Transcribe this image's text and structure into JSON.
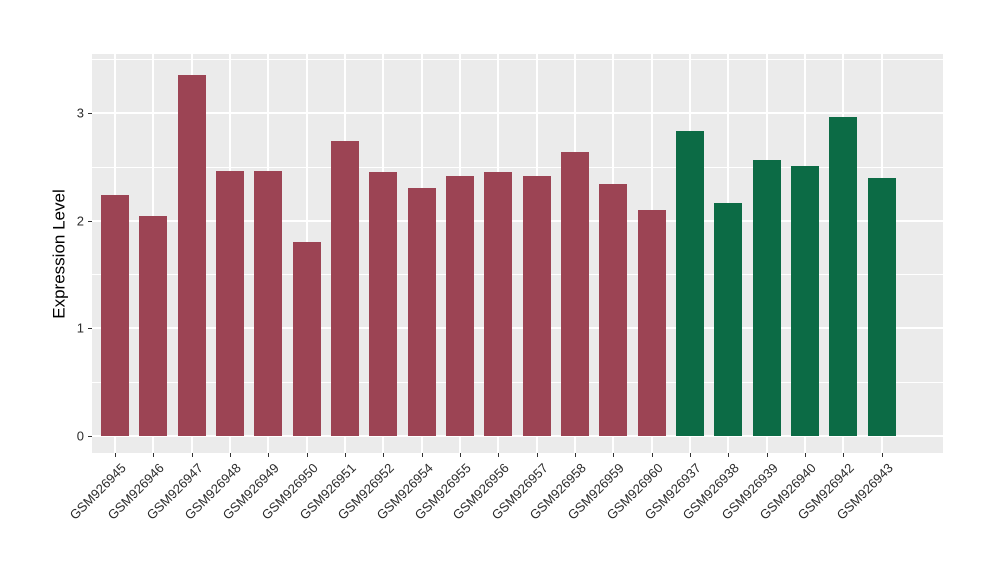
{
  "chart_data": {
    "type": "bar",
    "title": "",
    "xlabel": "",
    "ylabel": "Expression Level",
    "ylim": [
      -0.15,
      3.54
    ],
    "yticks": [
      "0",
      "1",
      "2",
      "3"
    ],
    "ytick_values": [
      0,
      1,
      2,
      3
    ],
    "yminor_values": [
      0.5,
      1.5,
      2.5,
      3.5
    ],
    "grid": "on",
    "legend": "none",
    "panel_background": "#EBEBEB",
    "gridline_color": "#FFFFFF",
    "group_colors": {
      "maroon": "#9C4454",
      "green": "#0C6B45"
    },
    "bars": [
      {
        "label": "GSM926945",
        "value": 2.24,
        "group": "maroon"
      },
      {
        "label": "GSM926946",
        "value": 2.04,
        "group": "maroon"
      },
      {
        "label": "GSM926947",
        "value": 3.35,
        "group": "maroon"
      },
      {
        "label": "GSM926948",
        "value": 2.46,
        "group": "maroon"
      },
      {
        "label": "GSM926949",
        "value": 2.46,
        "group": "maroon"
      },
      {
        "label": "GSM926950",
        "value": 1.8,
        "group": "maroon"
      },
      {
        "label": "GSM926951",
        "value": 2.74,
        "group": "maroon"
      },
      {
        "label": "GSM926952",
        "value": 2.45,
        "group": "maroon"
      },
      {
        "label": "GSM926954",
        "value": 2.3,
        "group": "maroon"
      },
      {
        "label": "GSM926955",
        "value": 2.41,
        "group": "maroon"
      },
      {
        "label": "GSM926956",
        "value": 2.45,
        "group": "maroon"
      },
      {
        "label": "GSM926957",
        "value": 2.41,
        "group": "maroon"
      },
      {
        "label": "GSM926958",
        "value": 2.64,
        "group": "maroon"
      },
      {
        "label": "GSM926959",
        "value": 2.34,
        "group": "maroon"
      },
      {
        "label": "GSM926960",
        "value": 2.1,
        "group": "maroon"
      },
      {
        "label": "GSM926937",
        "value": 2.83,
        "group": "green"
      },
      {
        "label": "GSM926938",
        "value": 2.16,
        "group": "green"
      },
      {
        "label": "GSM926939",
        "value": 2.56,
        "group": "green"
      },
      {
        "label": "GSM926940",
        "value": 2.51,
        "group": "green"
      },
      {
        "label": "GSM926942",
        "value": 2.96,
        "group": "green"
      },
      {
        "label": "GSM926943",
        "value": 2.4,
        "group": "green"
      }
    ]
  }
}
